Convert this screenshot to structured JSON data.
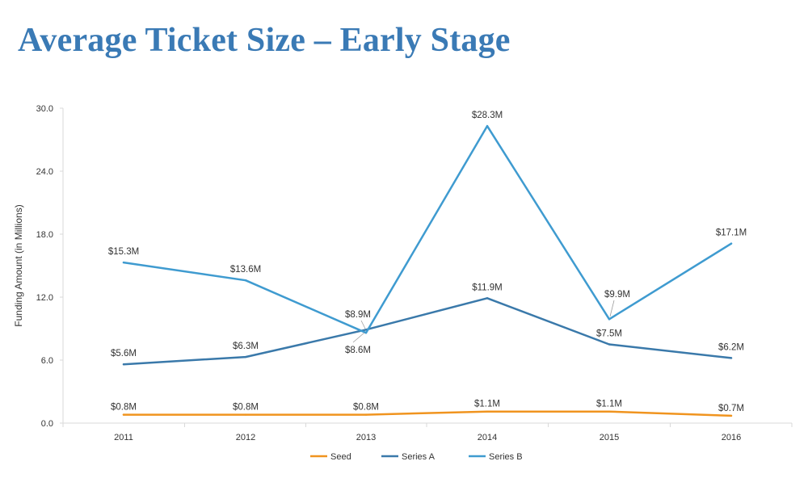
{
  "page": {
    "title": "Average Ticket Size – Early Stage"
  },
  "chart_data": {
    "type": "line",
    "title": "Average Ticket Size – Early Stage",
    "xlabel": "",
    "ylabel": "Funding Amount (in Millions)",
    "categories": [
      "2011",
      "2012",
      "2013",
      "2014",
      "2015",
      "2016"
    ],
    "ylim": [
      0,
      30
    ],
    "yticks": [
      0,
      6,
      12,
      18,
      24,
      30
    ],
    "ytick_labels": [
      "0.0",
      "6.0",
      "12.0",
      "18.0",
      "24.0",
      "30.0"
    ],
    "grid": false,
    "legend_position": "bottom",
    "series": [
      {
        "name": "Seed",
        "color": "#f0941f",
        "values": [
          0.8,
          0.8,
          0.8,
          1.1,
          1.1,
          0.7
        ],
        "labels": [
          "$0.8M",
          "$0.8M",
          "$0.8M",
          "$1.1M",
          "$1.1M",
          "$0.7M"
        ]
      },
      {
        "name": "Series A",
        "color": "#3a79aa",
        "values": [
          5.6,
          6.3,
          8.9,
          11.9,
          7.5,
          6.2
        ],
        "labels": [
          "$5.6M",
          "$6.3M",
          "$8.9M",
          "$11.9M",
          "$7.5M",
          "$6.2M"
        ]
      },
      {
        "name": "Series B",
        "color": "#3f9bd0",
        "values": [
          15.3,
          13.6,
          8.6,
          28.3,
          9.9,
          17.1
        ],
        "labels": [
          "$15.3M",
          "$13.6M",
          "$8.6M",
          "$28.3M",
          "$9.9M",
          "$17.1M"
        ]
      }
    ]
  }
}
